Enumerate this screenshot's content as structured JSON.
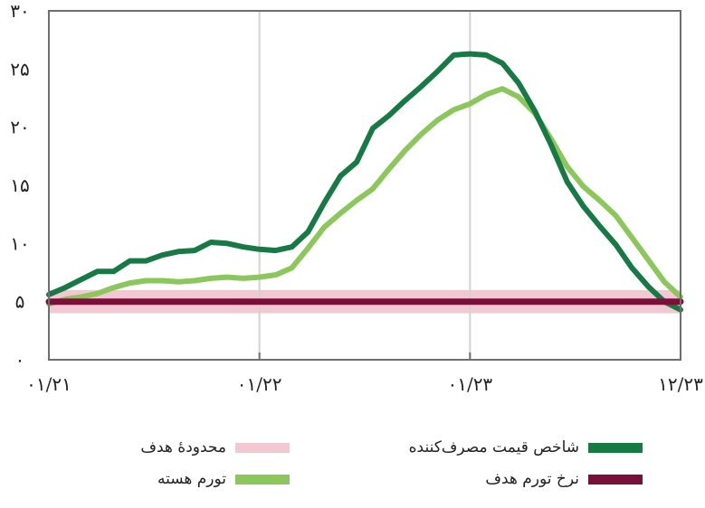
{
  "chart_data": {
    "type": "line",
    "x_ticks": [
      "۰۱/۲۱",
      "۰۱/۲۲",
      "۰۱/۲۳",
      "۱۲/۲۳"
    ],
    "y_ticks": [
      "۰",
      "۵",
      "۱۰",
      "۱۵",
      "۲۰",
      "۲۵",
      "۳۰"
    ],
    "ylim": [
      0,
      30
    ],
    "grid": "vertical at year ticks",
    "legend_placement": "bottom",
    "series": [
      {
        "name": "شاخص قیمت مصرف‌کننده",
        "color": "#177a45",
        "values": [
          5.6,
          6.2,
          6.9,
          7.6,
          7.6,
          8.5,
          8.5,
          9.0,
          9.3,
          9.4,
          10.1,
          10.0,
          9.7,
          9.5,
          9.4,
          9.7,
          11.0,
          13.5,
          15.8,
          17.0,
          19.9,
          21.0,
          22.3,
          23.5,
          24.8,
          26.2,
          26.3,
          26.2,
          25.5,
          23.8,
          21.4,
          18.5,
          15.3,
          13.2,
          11.5,
          9.9,
          7.9,
          6.3,
          5.0,
          4.3
        ]
      },
      {
        "name": "تورم هسته",
        "color": "#8cc75b",
        "values": [
          4.8,
          5.2,
          5.4,
          5.7,
          6.2,
          6.6,
          6.8,
          6.8,
          6.7,
          6.8,
          7.0,
          7.1,
          7.0,
          7.1,
          7.3,
          7.9,
          9.6,
          11.4,
          12.6,
          13.7,
          14.7,
          16.4,
          18.0,
          19.4,
          20.6,
          21.5,
          22.0,
          22.8,
          23.3,
          22.6,
          21.2,
          19.0,
          16.6,
          14.9,
          13.7,
          12.4,
          10.5,
          8.6,
          6.7,
          5.4
        ]
      },
      {
        "name": "نرخ تورم هدف",
        "color": "#7a0f3a",
        "values": [
          5,
          5
        ]
      }
    ],
    "target_band": {
      "name": "محدودهٔ هدف",
      "color": "#f2c9d3",
      "range": [
        4,
        6
      ]
    }
  },
  "legend": [
    {
      "label": "شاخص قیمت مصرف‌کننده",
      "color": "#177a45"
    },
    {
      "label": "محدودهٔ هدف",
      "color": "#f2c9d3"
    },
    {
      "label": "نرخ تورم هدف",
      "color": "#7a0f3a"
    },
    {
      "label": "تورم هسته",
      "color": "#8cc75b"
    }
  ]
}
